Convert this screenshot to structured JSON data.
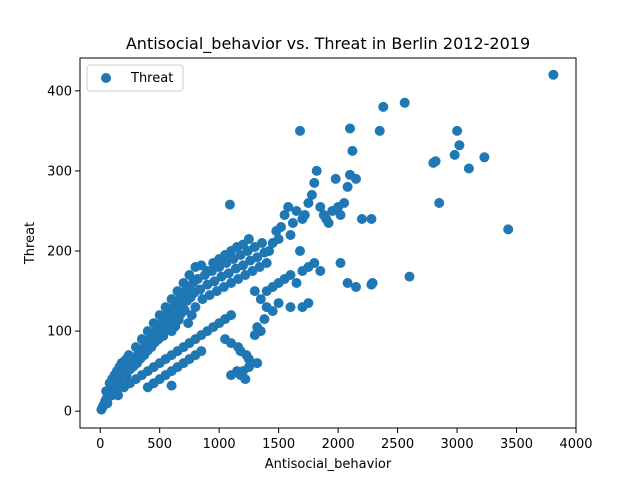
{
  "chart_data": {
    "type": "scatter",
    "title": "Antisocial_behavior vs. Threat in Berlin 2012-2019",
    "xlabel": "Antisocial_behavior",
    "ylabel": "Threat",
    "xlim": [
      -170,
      4000
    ],
    "ylim": [
      -21,
      441
    ],
    "xticks": [
      0,
      500,
      1000,
      1500,
      2000,
      2500,
      3000,
      3500,
      4000
    ],
    "yticks": [
      0,
      100,
      200,
      300,
      400
    ],
    "grid": false,
    "legend": {
      "position": "top-left",
      "entries": [
        "Threat"
      ]
    },
    "series": [
      {
        "name": "Threat",
        "color": "#1f77b4",
        "points": [
          [
            10,
            2
          ],
          [
            20,
            5
          ],
          [
            30,
            8
          ],
          [
            40,
            12
          ],
          [
            50,
            15
          ],
          [
            60,
            10
          ],
          [
            70,
            18
          ],
          [
            80,
            22
          ],
          [
            90,
            25
          ],
          [
            100,
            20
          ],
          [
            110,
            28
          ],
          [
            120,
            30
          ],
          [
            130,
            26
          ],
          [
            140,
            35
          ],
          [
            150,
            38
          ],
          [
            160,
            32
          ],
          [
            170,
            40
          ],
          [
            180,
            45
          ],
          [
            190,
            42
          ],
          [
            200,
            48
          ],
          [
            210,
            50
          ],
          [
            220,
            44
          ],
          [
            230,
            55
          ],
          [
            240,
            58
          ],
          [
            250,
            52
          ],
          [
            260,
            60
          ],
          [
            270,
            62
          ],
          [
            280,
            56
          ],
          [
            290,
            65
          ],
          [
            300,
            68
          ],
          [
            310,
            60
          ],
          [
            320,
            70
          ],
          [
            330,
            72
          ],
          [
            340,
            66
          ],
          [
            350,
            75
          ],
          [
            360,
            78
          ],
          [
            370,
            70
          ],
          [
            380,
            82
          ],
          [
            390,
            85
          ],
          [
            400,
            76
          ],
          [
            410,
            88
          ],
          [
            420,
            90
          ],
          [
            430,
            80
          ],
          [
            440,
            95
          ],
          [
            450,
            92
          ],
          [
            460,
            86
          ],
          [
            470,
            100
          ],
          [
            480,
            96
          ],
          [
            490,
            90
          ],
          [
            500,
            105
          ],
          [
            510,
            98
          ],
          [
            520,
            110
          ],
          [
            530,
            94
          ],
          [
            540,
            115
          ],
          [
            550,
            102
          ],
          [
            560,
            120
          ],
          [
            570,
            108
          ],
          [
            580,
            112
          ],
          [
            590,
            125
          ],
          [
            600,
            100
          ],
          [
            610,
            118
          ],
          [
            620,
            130
          ],
          [
            630,
            106
          ],
          [
            640,
            128
          ],
          [
            650,
            135
          ],
          [
            660,
            114
          ],
          [
            670,
            140
          ],
          [
            680,
            122
          ],
          [
            690,
            132
          ],
          [
            700,
            145
          ],
          [
            710,
            126
          ],
          [
            720,
            150
          ],
          [
            730,
            138
          ],
          [
            740,
            110
          ],
          [
            750,
            155
          ],
          [
            760,
            142
          ],
          [
            770,
            120
          ],
          [
            780,
            160
          ],
          [
            790,
            148
          ],
          [
            800,
            130
          ],
          [
            820,
            165
          ],
          [
            840,
            152
          ],
          [
            860,
            140
          ],
          [
            880,
            170
          ],
          [
            900,
            158
          ],
          [
            920,
            145
          ],
          [
            940,
            175
          ],
          [
            960,
            162
          ],
          [
            980,
            150
          ],
          [
            1000,
            180
          ],
          [
            1020,
            168
          ],
          [
            1040,
            155
          ],
          [
            1060,
            185
          ],
          [
            1080,
            172
          ],
          [
            1100,
            160
          ],
          [
            1120,
            190
          ],
          [
            1140,
            178
          ],
          [
            1160,
            165
          ],
          [
            1180,
            195
          ],
          [
            1200,
            182
          ],
          [
            1220,
            170
          ],
          [
            1240,
            200
          ],
          [
            1260,
            188
          ],
          [
            1280,
            175
          ],
          [
            1300,
            205
          ],
          [
            1320,
            192
          ],
          [
            1340,
            180
          ],
          [
            1360,
            210
          ],
          [
            1380,
            198
          ],
          [
            1400,
            185
          ],
          [
            150,
            20
          ],
          [
            200,
            30
          ],
          [
            250,
            35
          ],
          [
            300,
            40
          ],
          [
            350,
            45
          ],
          [
            400,
            50
          ],
          [
            450,
            55
          ],
          [
            500,
            60
          ],
          [
            550,
            65
          ],
          [
            600,
            70
          ],
          [
            650,
            75
          ],
          [
            700,
            80
          ],
          [
            750,
            85
          ],
          [
            800,
            90
          ],
          [
            850,
            95
          ],
          [
            900,
            100
          ],
          [
            950,
            105
          ],
          [
            1000,
            110
          ],
          [
            1050,
            115
          ],
          [
            1100,
            120
          ],
          [
            300,
            80
          ],
          [
            350,
            90
          ],
          [
            400,
            100
          ],
          [
            450,
            110
          ],
          [
            500,
            120
          ],
          [
            550,
            130
          ],
          [
            600,
            140
          ],
          [
            650,
            150
          ],
          [
            700,
            160
          ],
          [
            750,
            170
          ],
          [
            800,
            180
          ],
          [
            850,
            182
          ],
          [
            900,
            175
          ],
          [
            950,
            185
          ],
          [
            1000,
            190
          ],
          [
            1050,
            195
          ],
          [
            1100,
            200
          ],
          [
            1150,
            205
          ],
          [
            1200,
            208
          ],
          [
            1250,
            215
          ],
          [
            50,
            25
          ],
          [
            80,
            35
          ],
          [
            100,
            40
          ],
          [
            120,
            45
          ],
          [
            140,
            50
          ],
          [
            160,
            55
          ],
          [
            180,
            60
          ],
          [
            200,
            62
          ],
          [
            220,
            65
          ],
          [
            240,
            70
          ],
          [
            400,
            30
          ],
          [
            450,
            35
          ],
          [
            500,
            40
          ],
          [
            550,
            45
          ],
          [
            600,
            50
          ],
          [
            650,
            55
          ],
          [
            700,
            60
          ],
          [
            750,
            65
          ],
          [
            800,
            70
          ],
          [
            850,
            75
          ],
          [
            1100,
            45
          ],
          [
            1150,
            50
          ],
          [
            1180,
            45
          ],
          [
            1200,
            50
          ],
          [
            1220,
            40
          ],
          [
            1250,
            55
          ],
          [
            1300,
            95
          ],
          [
            1320,
            105
          ],
          [
            1350,
            100
          ],
          [
            1380,
            115
          ],
          [
            1420,
            200
          ],
          [
            1450,
            210
          ],
          [
            1480,
            225
          ],
          [
            1500,
            215
          ],
          [
            1520,
            230
          ],
          [
            1550,
            245
          ],
          [
            1580,
            255
          ],
          [
            1600,
            220
          ],
          [
            1620,
            235
          ],
          [
            1650,
            250
          ],
          [
            1400,
            150
          ],
          [
            1450,
            155
          ],
          [
            1500,
            160
          ],
          [
            1550,
            165
          ],
          [
            1600,
            170
          ],
          [
            1650,
            160
          ],
          [
            1700,
            175
          ],
          [
            1750,
            180
          ],
          [
            1800,
            185
          ],
          [
            1850,
            175
          ],
          [
            1680,
            350
          ],
          [
            1680,
            200
          ],
          [
            1700,
            240
          ],
          [
            1720,
            245
          ],
          [
            1750,
            260
          ],
          [
            1780,
            270
          ],
          [
            1800,
            285
          ],
          [
            1820,
            300
          ],
          [
            1850,
            255
          ],
          [
            1880,
            245
          ],
          [
            1900,
            240
          ],
          [
            1920,
            235
          ],
          [
            1950,
            250
          ],
          [
            1980,
            290
          ],
          [
            2000,
            255
          ],
          [
            2020,
            245
          ],
          [
            2050,
            260
          ],
          [
            2080,
            280
          ],
          [
            2100,
            295
          ],
          [
            2120,
            325
          ],
          [
            2100,
            353
          ],
          [
            2150,
            290
          ],
          [
            2200,
            240
          ],
          [
            2150,
            155
          ],
          [
            2080,
            160
          ],
          [
            2020,
            185
          ],
          [
            2280,
            158
          ],
          [
            2290,
            160
          ],
          [
            2280,
            240
          ],
          [
            2350,
            350
          ],
          [
            2380,
            380
          ],
          [
            2560,
            385
          ],
          [
            2600,
            168
          ],
          [
            2800,
            310
          ],
          [
            2820,
            312
          ],
          [
            2850,
            260
          ],
          [
            2980,
            320
          ],
          [
            3000,
            350
          ],
          [
            3020,
            332
          ],
          [
            3100,
            303
          ],
          [
            3230,
            317
          ],
          [
            3430,
            227
          ],
          [
            3810,
            420
          ],
          [
            1090,
            258
          ],
          [
            1300,
            150
          ],
          [
            1350,
            140
          ],
          [
            1400,
            130
          ],
          [
            1450,
            125
          ],
          [
            1500,
            135
          ],
          [
            1600,
            130
          ],
          [
            1700,
            130
          ],
          [
            1750,
            135
          ],
          [
            1320,
            60
          ],
          [
            1250,
            65
          ],
          [
            1230,
            70
          ],
          [
            1180,
            75
          ],
          [
            1160,
            80
          ],
          [
            1100,
            85
          ],
          [
            1050,
            90
          ],
          [
            600,
            32
          ]
        ]
      }
    ]
  }
}
